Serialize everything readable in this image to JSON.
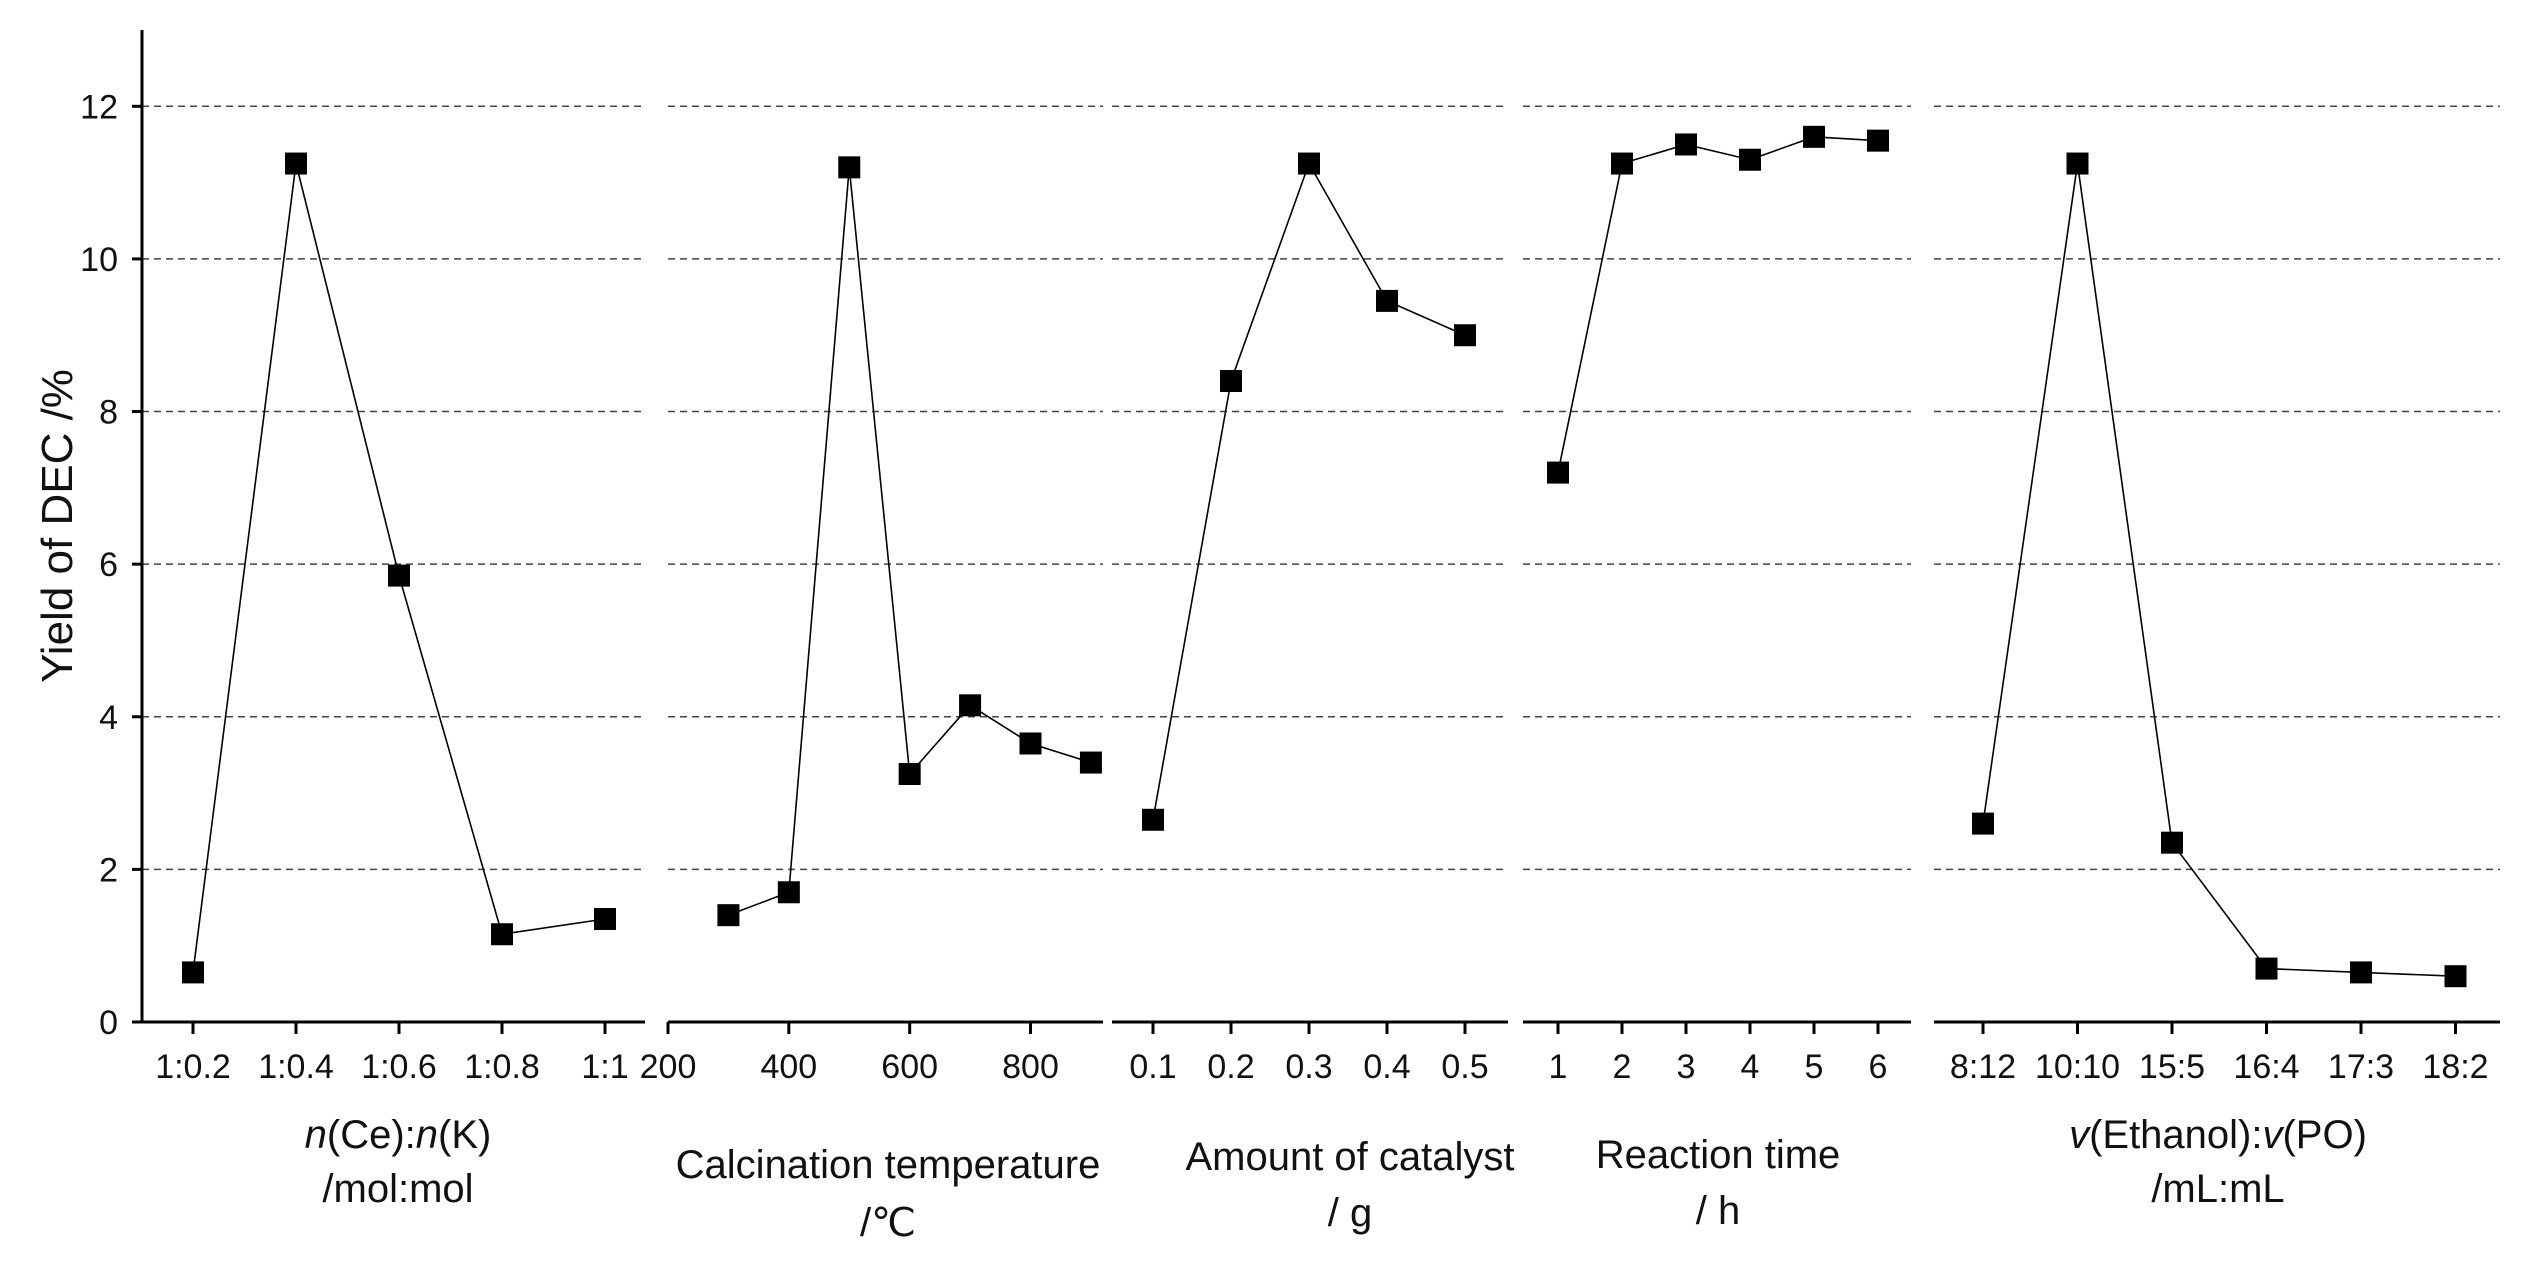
{
  "chart_data": {
    "type": "line",
    "ylabel": "Yield of DEC /%",
    "ylim": [
      0,
      13
    ],
    "yticks": [
      0,
      2,
      4,
      6,
      8,
      10,
      12
    ],
    "grid": "dashed-horizontal",
    "marker": "square",
    "panels": [
      {
        "xlabel_lines": [
          [
            {
              "text": "n",
              "italic": true
            },
            {
              "text": "(Ce):"
            },
            {
              "text": "n",
              "italic": true
            },
            {
              "text": "(K)"
            }
          ],
          [
            {
              "text": "/mol:mol"
            }
          ]
        ],
        "categories": [
          "1:0.2",
          "1:0.4",
          "1:0.6",
          "1:0.8",
          "1:1"
        ],
        "values": [
          0.65,
          11.25,
          5.85,
          1.15,
          1.35
        ]
      },
      {
        "xlabel_lines": [
          [
            {
              "text": "Calcination temperature"
            }
          ],
          [
            {
              "text": "/℃"
            }
          ]
        ],
        "x_numeric": true,
        "xlim": [
          200,
          920
        ],
        "xticks": [
          200,
          400,
          600,
          800
        ],
        "x": [
          300,
          400,
          500,
          600,
          700,
          800,
          900
        ],
        "values": [
          1.4,
          1.7,
          11.2,
          3.25,
          4.15,
          3.65,
          3.4
        ]
      },
      {
        "xlabel_lines": [
          [
            {
              "text": "Amount of catalyst"
            }
          ],
          [
            {
              "text": "/ g"
            }
          ]
        ],
        "categories": [
          "0.1",
          "0.2",
          "0.3",
          "0.4",
          "0.5"
        ],
        "values": [
          2.65,
          8.4,
          11.25,
          9.45,
          9.0
        ]
      },
      {
        "xlabel_lines": [
          [
            {
              "text": "Reaction time"
            }
          ],
          [
            {
              "text": "/ h"
            }
          ]
        ],
        "categories": [
          "1",
          "2",
          "3",
          "4",
          "5",
          "6"
        ],
        "values": [
          7.2,
          11.25,
          11.5,
          11.3,
          11.6,
          11.55
        ]
      },
      {
        "xlabel_lines": [
          [
            {
              "text": "v",
              "italic": true
            },
            {
              "text": "(Ethanol):"
            },
            {
              "text": "v",
              "italic": true
            },
            {
              "text": "(PO)"
            }
          ],
          [
            {
              "text": "/mL:mL"
            }
          ]
        ],
        "categories": [
          "8:12",
          "10:10",
          "15:5",
          "16:4",
          "17:3",
          "18:2"
        ],
        "values": [
          2.6,
          11.25,
          2.35,
          0.7,
          0.65,
          0.6
        ]
      }
    ]
  }
}
